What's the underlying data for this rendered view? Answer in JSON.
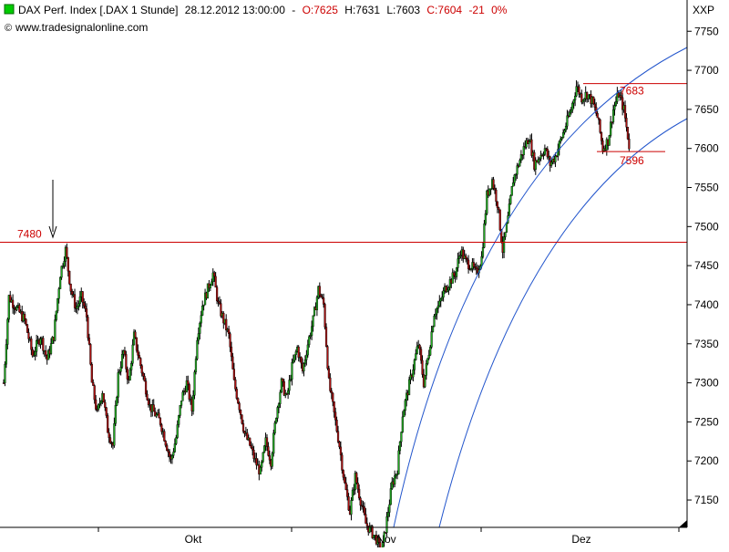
{
  "header": {
    "instrument": "DAX Perf. Index [.DAX  1 Stunde]",
    "datetime": "28.12.2012 13:00:00",
    "open_label": "O:7625",
    "high_label": "H:7631",
    "low_label": "L:7603",
    "close_label": "C:7604",
    "change_label": "-21",
    "change_pct_label": "0%",
    "source": "www.tradesignalonline.com",
    "exchange_label": "XXP",
    "legend_icon": "green-square-icon",
    "copyright_icon": "copyright-icon"
  },
  "chart_data": {
    "type": "candlestick",
    "title": "DAX Perf. Index [.DAX  1 Stunde]",
    "interval": "1 Stunde",
    "last_bar": {
      "datetime": "28.12.2012 13:00:00",
      "open": 7625,
      "high": 7631,
      "low": 7603,
      "close": 7604,
      "change": -21,
      "change_pct": "0%"
    },
    "y_ticks": [
      7150,
      7200,
      7250,
      7300,
      7350,
      7400,
      7450,
      7500,
      7550,
      7600,
      7650,
      7700,
      7750
    ],
    "ylim": [
      7115,
      7790
    ],
    "x_month_labels": [
      "Okt",
      "Nov",
      "Dez"
    ],
    "grid": false,
    "colors": {
      "up": "#22aa22",
      "down": "#aa1111",
      "level_line": "#cc0000",
      "channel": "#2255cc",
      "axis": "#000000"
    },
    "levels": [
      {
        "label": "7480",
        "value": 7480
      },
      {
        "label": "7683",
        "value": 7683
      },
      {
        "label": "7596",
        "value": 7596
      }
    ],
    "price_path": [
      [
        0,
        7300
      ],
      [
        4,
        7410
      ],
      [
        10,
        7395
      ],
      [
        16,
        7380
      ],
      [
        22,
        7335
      ],
      [
        28,
        7360
      ],
      [
        33,
        7330
      ],
      [
        38,
        7360
      ],
      [
        43,
        7440
      ],
      [
        47,
        7470
      ],
      [
        51,
        7420
      ],
      [
        55,
        7395
      ],
      [
        59,
        7410
      ],
      [
        63,
        7385
      ],
      [
        67,
        7300
      ],
      [
        71,
        7260
      ],
      [
        75,
        7290
      ],
      [
        79,
        7240
      ],
      [
        83,
        7220
      ],
      [
        87,
        7310
      ],
      [
        91,
        7340
      ],
      [
        95,
        7300
      ],
      [
        99,
        7360
      ],
      [
        103,
        7330
      ],
      [
        107,
        7300
      ],
      [
        111,
        7270
      ],
      [
        115,
        7260
      ],
      [
        119,
        7250
      ],
      [
        123,
        7225
      ],
      [
        127,
        7200
      ],
      [
        131,
        7230
      ],
      [
        135,
        7280
      ],
      [
        139,
        7300
      ],
      [
        143,
        7265
      ],
      [
        147,
        7360
      ],
      [
        151,
        7400
      ],
      [
        155,
        7420
      ],
      [
        159,
        7440
      ],
      [
        163,
        7400
      ],
      [
        167,
        7380
      ],
      [
        171,
        7360
      ],
      [
        175,
        7300
      ],
      [
        179,
        7270
      ],
      [
        183,
        7235
      ],
      [
        187,
        7220
      ],
      [
        191,
        7200
      ],
      [
        195,
        7185
      ],
      [
        199,
        7225
      ],
      [
        203,
        7200
      ],
      [
        207,
        7260
      ],
      [
        211,
        7300
      ],
      [
        215,
        7280
      ],
      [
        219,
        7320
      ],
      [
        223,
        7345
      ],
      [
        227,
        7315
      ],
      [
        231,
        7350
      ],
      [
        235,
        7380
      ],
      [
        239,
        7420
      ],
      [
        243,
        7400
      ],
      [
        247,
        7300
      ],
      [
        251,
        7260
      ],
      [
        255,
        7220
      ],
      [
        259,
        7170
      ],
      [
        263,
        7135
      ],
      [
        267,
        7180
      ],
      [
        271,
        7150
      ],
      [
        275,
        7120
      ],
      [
        279,
        7110
      ],
      [
        283,
        7100
      ],
      [
        287,
        7080
      ],
      [
        291,
        7125
      ],
      [
        295,
        7170
      ],
      [
        299,
        7190
      ],
      [
        303,
        7260
      ],
      [
        307,
        7290
      ],
      [
        311,
        7320
      ],
      [
        315,
        7350
      ],
      [
        319,
        7300
      ],
      [
        323,
        7340
      ],
      [
        327,
        7390
      ],
      [
        331,
        7400
      ],
      [
        335,
        7420
      ],
      [
        339,
        7430
      ],
      [
        343,
        7440
      ],
      [
        347,
        7470
      ],
      [
        351,
        7455
      ],
      [
        355,
        7450
      ],
      [
        359,
        7440
      ],
      [
        363,
        7460
      ],
      [
        367,
        7540
      ],
      [
        371,
        7560
      ],
      [
        375,
        7530
      ],
      [
        379,
        7470
      ],
      [
        383,
        7510
      ],
      [
        387,
        7560
      ],
      [
        391,
        7580
      ],
      [
        395,
        7600
      ],
      [
        399,
        7615
      ],
      [
        403,
        7580
      ],
      [
        407,
        7590
      ],
      [
        411,
        7600
      ],
      [
        415,
        7580
      ],
      [
        419,
        7590
      ],
      [
        423,
        7610
      ],
      [
        427,
        7630
      ],
      [
        431,
        7650
      ],
      [
        435,
        7680
      ],
      [
        439,
        7665
      ],
      [
        443,
        7670
      ],
      [
        447,
        7660
      ],
      [
        451,
        7640
      ],
      [
        455,
        7600
      ],
      [
        459,
        7610
      ],
      [
        463,
        7650
      ],
      [
        467,
        7670
      ],
      [
        471,
        7650
      ],
      [
        475,
        7604
      ]
    ],
    "annotations": [
      {
        "type": "arrow-down",
        "at_value": 7480,
        "icon": "arrow-down-icon"
      },
      {
        "type": "curved-channel",
        "bounds": "upper and lower",
        "color": "#2255cc"
      }
    ]
  }
}
